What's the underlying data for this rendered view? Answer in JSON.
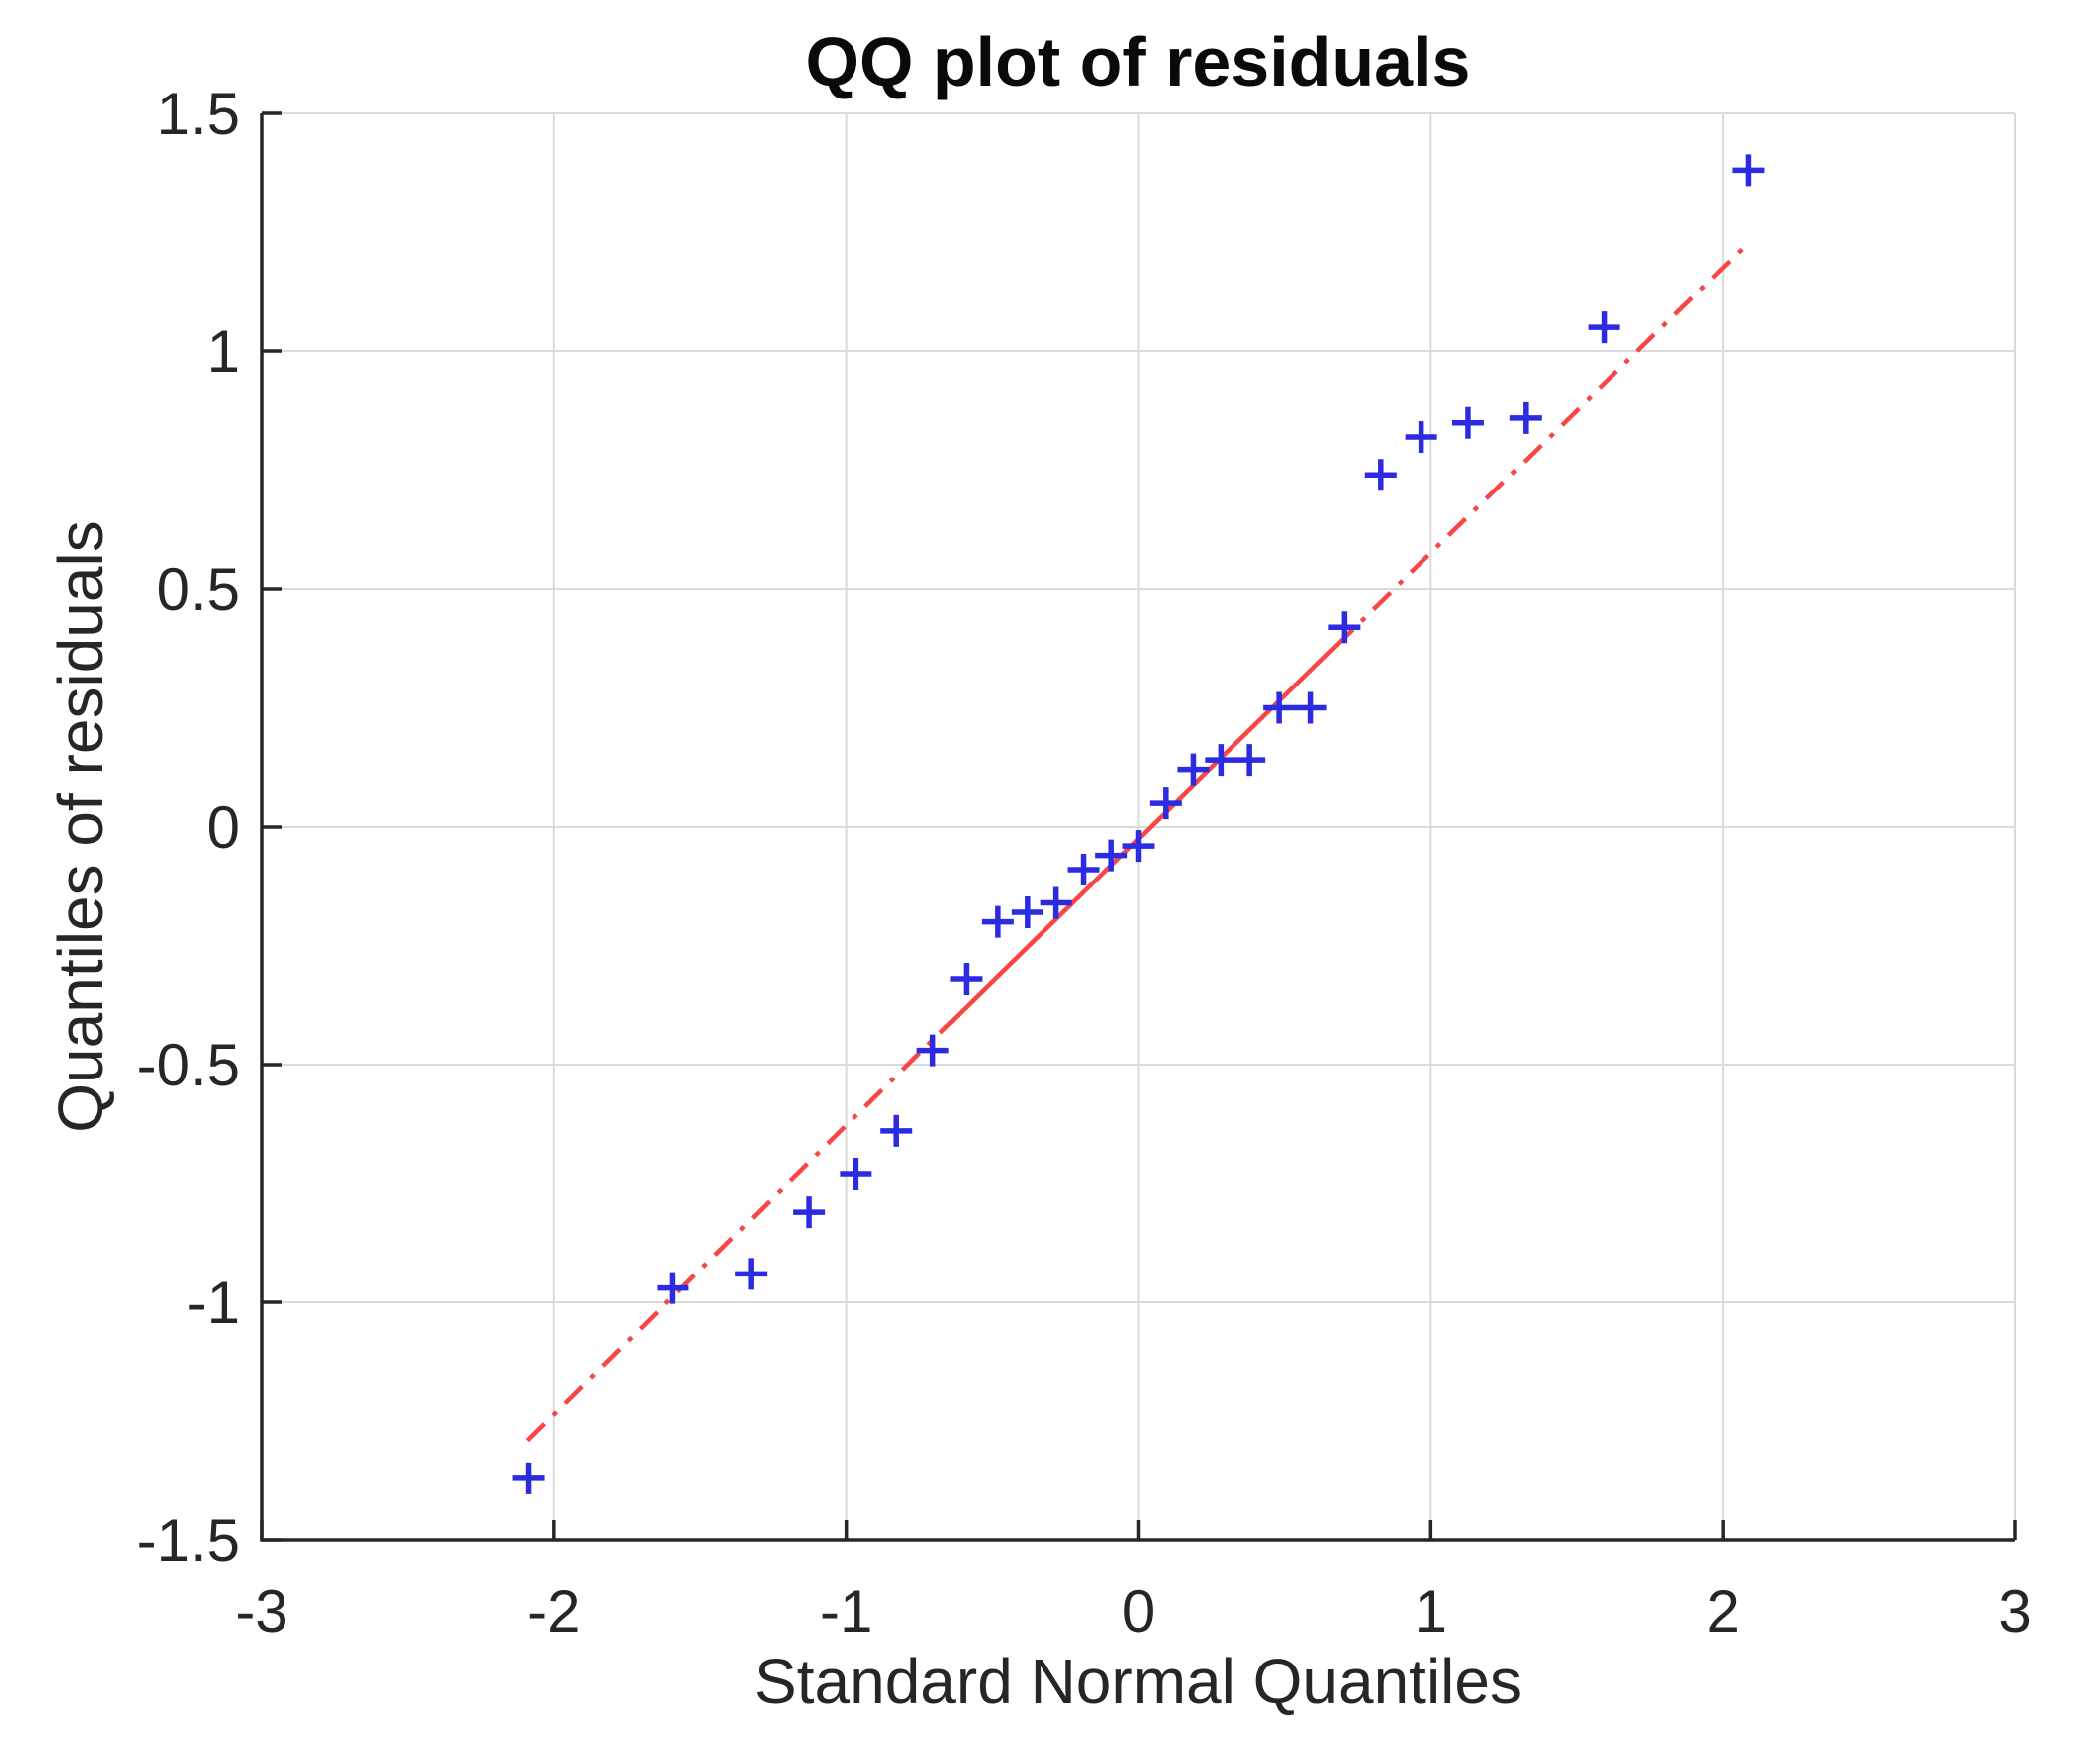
{
  "chart_data": {
    "type": "scatter",
    "subtype": "qq-plot",
    "title": "QQ plot of residuals",
    "xlabel": "Standard Normal Quantiles",
    "ylabel": "Quantiles of residuals",
    "xlim": [
      -3,
      3
    ],
    "ylim": [
      -1.5,
      1.5
    ],
    "x_ticks": [
      -3,
      -2,
      -1,
      0,
      1,
      2,
      3
    ],
    "x_tick_labels": [
      "-3",
      "-2",
      "-1",
      "0",
      "1",
      "2",
      "3"
    ],
    "y_ticks": [
      -1.5,
      -1,
      -0.5,
      0,
      0.5,
      1,
      1.5
    ],
    "y_tick_labels": [
      "-1.5",
      "-1",
      "-0.5",
      "0",
      "0.5",
      "1",
      "1.5"
    ],
    "grid": true,
    "legend": "none",
    "marker": "plus",
    "series": [
      {
        "name": "residual quantiles vs standard normal quantiles",
        "points": [
          [
            -2.086,
            -1.37
          ],
          [
            -1.593,
            -0.97
          ],
          [
            -1.325,
            -0.94
          ],
          [
            -1.128,
            -0.81
          ],
          [
            -0.967,
            -0.73
          ],
          [
            -0.828,
            -0.64
          ],
          [
            -0.704,
            -0.47
          ],
          [
            -0.589,
            -0.32
          ],
          [
            -0.482,
            -0.2
          ],
          [
            -0.38,
            -0.18
          ],
          [
            -0.282,
            -0.16
          ],
          [
            -0.187,
            -0.09
          ],
          [
            -0.093,
            -0.06
          ],
          [
            0.0,
            -0.04
          ],
          [
            0.093,
            0.05
          ],
          [
            0.187,
            0.12
          ],
          [
            0.282,
            0.14
          ],
          [
            0.38,
            0.14
          ],
          [
            0.482,
            0.25
          ],
          [
            0.589,
            0.25
          ],
          [
            0.704,
            0.42
          ],
          [
            0.828,
            0.74
          ],
          [
            0.967,
            0.82
          ],
          [
            1.128,
            0.85
          ],
          [
            1.325,
            0.86
          ],
          [
            1.593,
            1.05
          ],
          [
            2.086,
            1.38
          ]
        ]
      }
    ],
    "ref_line": {
      "style": "dash-dot extensions with solid interquartile segment",
      "dashed_extent": [
        [
          -2.09,
          -1.29
        ],
        [
          2.09,
          1.23
        ]
      ],
      "solid_segment": [
        [
          -0.674,
          -0.43
        ],
        [
          0.674,
          0.38
        ]
      ]
    },
    "colors": {
      "marker": "#2b2be2",
      "ref_line": "#f84545",
      "grid": "#d9d9d9",
      "axis": "#262626",
      "tick_label": "#262626",
      "title": "#0a0a0a",
      "background": "#ffffff"
    }
  }
}
